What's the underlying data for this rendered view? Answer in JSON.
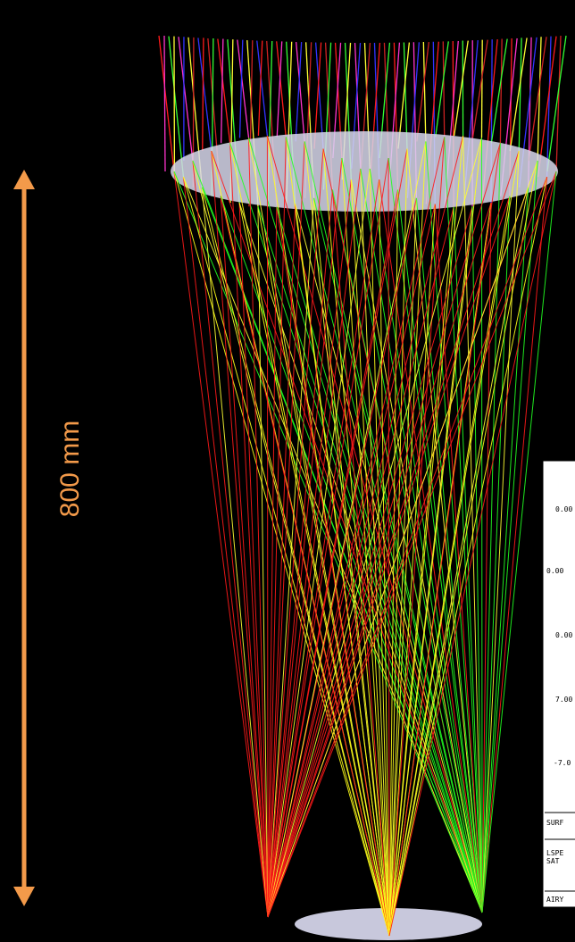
{
  "annotation": {
    "label": "800 mm"
  },
  "spot_panel": {
    "field_labels": [
      "0.00",
      "0.00",
      "0.00",
      "7.00",
      "-7.0"
    ],
    "rows": [
      "SURF",
      "LSPE",
      "SAT",
      "AIRY"
    ]
  }
}
